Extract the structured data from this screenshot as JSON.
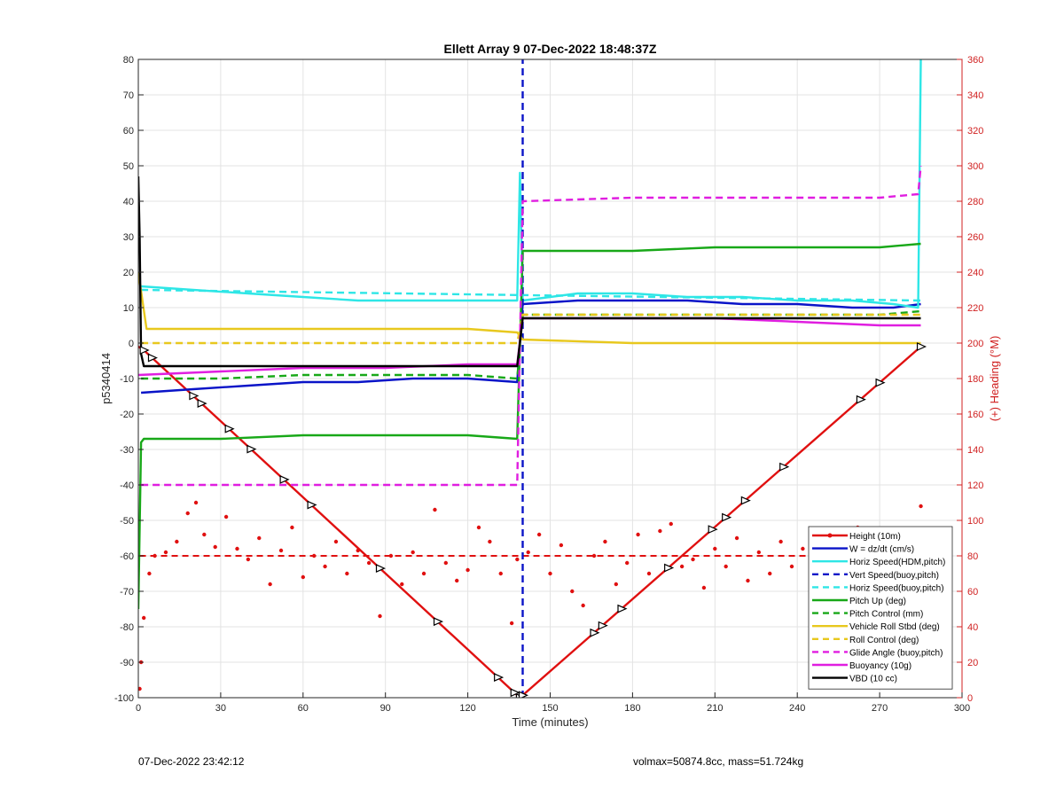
{
  "footer": {
    "timestamp": "07-Dec-2022 23:42:12",
    "stats": "volmax=50874.8cc, mass=51.724kg"
  },
  "chart_data": {
    "type": "line",
    "title": "Ellett Array 9 07-Dec-2022 18:48:37Z",
    "xlabel": "Time (minutes)",
    "ylabel": "p5340414",
    "y2label": "(+) Heading (°M)",
    "xlim": [
      0,
      300
    ],
    "ylim": [
      -100,
      80
    ],
    "y2lim": [
      0,
      360
    ],
    "xticks": [
      0,
      30,
      60,
      90,
      120,
      150,
      180,
      210,
      240,
      270,
      300
    ],
    "yticks": [
      -100,
      -90,
      -80,
      -70,
      -60,
      -50,
      -40,
      -30,
      -20,
      -10,
      0,
      10,
      20,
      30,
      40,
      50,
      60,
      70,
      80
    ],
    "y2ticks": [
      0,
      20,
      40,
      60,
      80,
      100,
      120,
      140,
      160,
      180,
      200,
      220,
      240,
      260,
      280,
      300,
      320,
      340,
      360
    ],
    "grid": true,
    "legend_position": "bottom-right",
    "colors": {
      "red": "#e01010",
      "blue": "#0a14c8",
      "cyan": "#2ee6e6",
      "green": "#18a818",
      "yellow": "#e8c81e",
      "magenta": "#e01ee0",
      "black": "#000000",
      "right_axis": "#d02020"
    },
    "series": [
      {
        "name": "Height (10m)",
        "color": "#e01010",
        "style": "solid",
        "x": [
          0,
          2,
          139,
          285
        ],
        "y": [
          -1,
          -2,
          -100,
          -1
        ]
      },
      {
        "name": "W = dz/dt (cm/s)",
        "color": "#0a14c8",
        "style": "solid",
        "x": [
          1,
          20,
          40,
          60,
          80,
          100,
          120,
          138,
          140,
          160,
          180,
          200,
          220,
          240,
          260,
          275,
          285
        ],
        "y": [
          -14,
          -13,
          -12,
          -11,
          -11,
          -10,
          -10,
          -11,
          11,
          12,
          12,
          12,
          11,
          11,
          10,
          10,
          11
        ]
      },
      {
        "name": "Horiz Speed(HDM,pitch)",
        "color": "#2ee6e6",
        "style": "solid",
        "x": [
          1,
          20,
          40,
          60,
          80,
          100,
          120,
          138,
          139,
          140,
          160,
          180,
          200,
          220,
          240,
          260,
          275,
          284,
          285
        ],
        "y": [
          16,
          15,
          14,
          13,
          12,
          12,
          12,
          12,
          48,
          12,
          14,
          14,
          13,
          13,
          12,
          12,
          11,
          10,
          80
        ]
      },
      {
        "name": "Vert Speed(buoy,pitch)",
        "color": "#0a14c8",
        "style": "dashed",
        "x": [
          140,
          140
        ],
        "y": [
          -100,
          80
        ]
      },
      {
        "name": "Horiz Speed(buoy,pitch)",
        "color": "#2ee6e6",
        "style": "dashed",
        "x": [
          1,
          285
        ],
        "y": [
          15,
          12
        ]
      },
      {
        "name": "Pitch Up (deg)",
        "color": "#18a818",
        "style": "solid",
        "x": [
          0,
          1,
          2,
          30,
          60,
          90,
          120,
          138,
          140,
          180,
          210,
          240,
          270,
          285
        ],
        "y": [
          -75,
          -28,
          -27,
          -27,
          -26,
          -26,
          -26,
          -27,
          26,
          26,
          27,
          27,
          27,
          28
        ]
      },
      {
        "name": "Pitch Control (mm)",
        "color": "#18a818",
        "style": "dashed",
        "x": [
          1,
          30,
          60,
          90,
          120,
          138,
          140,
          180,
          210,
          240,
          270,
          285
        ],
        "y": [
          -10,
          -10,
          -9,
          -9,
          -9,
          -10,
          8,
          8,
          8,
          8,
          8,
          9
        ]
      },
      {
        "name": "Vehicle Roll Stbd (deg)",
        "color": "#e8c81e",
        "style": "solid",
        "x": [
          0,
          3,
          30,
          60,
          90,
          120,
          138,
          140,
          180,
          210,
          240,
          270,
          285
        ],
        "y": [
          20,
          4,
          4,
          4,
          4,
          4,
          3,
          1,
          0,
          0,
          0,
          0,
          0
        ]
      },
      {
        "name": "Roll Control (deg)",
        "color": "#e8c81e",
        "style": "dashed",
        "x": [
          1,
          30,
          60,
          90,
          120,
          138,
          140,
          180,
          210,
          240,
          270,
          285
        ],
        "y": [
          0,
          0,
          0,
          0,
          0,
          0,
          8,
          8,
          8,
          8,
          8,
          8
        ]
      },
      {
        "name": "Glide Angle (buoy,pitch)",
        "color": "#e01ee0",
        "style": "dashed",
        "x": [
          1,
          30,
          60,
          90,
          120,
          138,
          140,
          180,
          210,
          240,
          270,
          284,
          285
        ],
        "y": [
          -40,
          -40,
          -40,
          -40,
          -40,
          -40,
          40,
          41,
          41,
          41,
          41,
          42,
          50
        ]
      },
      {
        "name": "Buoyancy (10g)",
        "color": "#e01ee0",
        "style": "solid",
        "x": [
          0,
          30,
          60,
          90,
          120,
          138,
          140,
          180,
          210,
          240,
          270,
          285
        ],
        "y": [
          -9,
          -8,
          -7,
          -7,
          -6,
          -6,
          7,
          7,
          7,
          6,
          5,
          5
        ]
      },
      {
        "name": "VBD (10 cc)",
        "color": "#000000",
        "style": "solid",
        "x": [
          0,
          0.5,
          1,
          2,
          138,
          140,
          285
        ],
        "y": [
          47,
          30,
          -3,
          -6.5,
          -6.5,
          7,
          7
        ]
      }
    ],
    "heading": {
      "axis": "right",
      "color": "#e01010",
      "mean": 80,
      "x": [
        0.5,
        1,
        2,
        4,
        6,
        10,
        14,
        18,
        21,
        24,
        28,
        32,
        36,
        40,
        44,
        48,
        52,
        56,
        60,
        64,
        68,
        72,
        76,
        80,
        84,
        88,
        92,
        96,
        100,
        104,
        108,
        112,
        116,
        120,
        124,
        128,
        132,
        136,
        138,
        142,
        146,
        150,
        154,
        158,
        162,
        166,
        170,
        174,
        178,
        182,
        186,
        190,
        194,
        198,
        202,
        206,
        210,
        214,
        218,
        222,
        226,
        230,
        234,
        238,
        242,
        246,
        250,
        254,
        258,
        262,
        266,
        270,
        274,
        278,
        282,
        285
      ],
      "y": [
        5,
        20,
        45,
        70,
        80,
        82,
        88,
        104,
        110,
        92,
        85,
        102,
        84,
        78,
        90,
        64,
        83,
        96,
        68,
        80,
        74,
        88,
        70,
        83,
        76,
        46,
        80,
        64,
        82,
        70,
        106,
        76,
        66,
        72,
        96,
        88,
        70,
        42,
        78,
        82,
        92,
        70,
        86,
        60,
        52,
        80,
        88,
        64,
        76,
        92,
        70,
        94,
        98,
        74,
        78,
        62,
        84,
        74,
        90,
        66,
        82,
        70,
        88,
        74,
        84,
        68,
        80,
        72,
        86,
        96,
        78,
        90,
        84,
        80,
        70,
        108
      ]
    },
    "markers": {
      "series": "Height (10m)",
      "x": [
        2,
        5,
        20,
        23,
        33,
        41,
        53,
        63,
        88,
        109,
        131,
        137,
        139,
        140,
        166,
        169,
        176,
        193,
        209,
        214,
        221,
        235,
        263,
        270,
        285
      ]
    }
  }
}
